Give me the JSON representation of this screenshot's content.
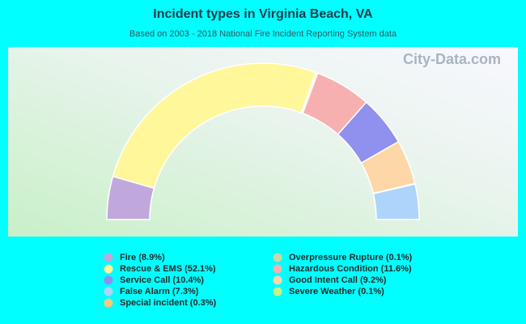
{
  "chart_data": {
    "type": "half-donut",
    "title": "Incident types in Virginia Beach, VA",
    "subtitle": "Based on 2003 - 2018 National Fire Incident Reporting System data",
    "watermark": "City-Data.com",
    "categories": [
      "Fire (8.9%)",
      "Rescue & EMS (52.1%)",
      "Service Call (10.4%)",
      "False Alarm (7.3%)",
      "Special incident (0.3%)",
      "Overpressure Rupture (0.1%)",
      "Hazardous Condition (11.6%)",
      "Good Intent Call (9.2%)",
      "Severe Weather (0.1%)"
    ],
    "values": [
      8.9,
      52.1,
      10.4,
      7.3,
      0.3,
      0.1,
      11.6,
      9.2,
      0.1
    ],
    "colors": [
      "#c0a8dc",
      "#fff799",
      "#9090ef",
      "#add4fb",
      "#f5c87a",
      "#c8d8a0",
      "#f7b0b0",
      "#fdd7a8",
      "#c8f08a"
    ]
  }
}
